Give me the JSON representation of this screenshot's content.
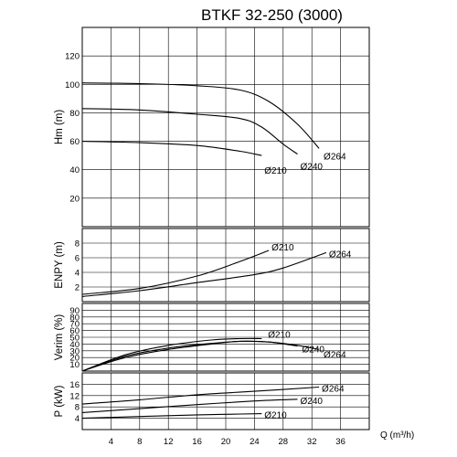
{
  "chart_data": {
    "type": "line",
    "title": "BTKF 32-250 (3000)",
    "xlabel": "Q (m³/h)",
    "xlim": [
      0,
      40
    ],
    "x_ticks": [
      4,
      8,
      12,
      16,
      20,
      24,
      28,
      32,
      36
    ],
    "grid": true,
    "panels": [
      {
        "id": "head",
        "ylabel": "Hm (m)",
        "ylim": [
          0,
          140
        ],
        "y_ticks": [
          20,
          40,
          60,
          80,
          100,
          120
        ],
        "series": [
          {
            "name": "Ø264",
            "points": [
              [
                0,
                101
              ],
              [
                8,
                100.5
              ],
              [
                16,
                99
              ],
              [
                22,
                96
              ],
              [
                26,
                88
              ],
              [
                30,
                72
              ],
              [
                33,
                55
              ]
            ]
          },
          {
            "name": "Ø240",
            "points": [
              [
                0,
                83
              ],
              [
                8,
                82
              ],
              [
                16,
                79
              ],
              [
                22,
                76
              ],
              [
                25,
                70
              ],
              [
                28,
                58
              ],
              [
                30,
                51
              ]
            ]
          },
          {
            "name": "Ø210",
            "points": [
              [
                0,
                60
              ],
              [
                8,
                59
              ],
              [
                16,
                57
              ],
              [
                22,
                53
              ],
              [
                25,
                50
              ]
            ]
          }
        ]
      },
      {
        "id": "npsh",
        "ylabel": "ENPY (m)",
        "ylim": [
          0,
          10
        ],
        "y_ticks": [
          2,
          4,
          6,
          8
        ],
        "series": [
          {
            "name": "Ø210",
            "points": [
              [
                0,
                1
              ],
              [
                8,
                1.8
              ],
              [
                16,
                3.5
              ],
              [
                22,
                5.5
              ],
              [
                26,
                7
              ]
            ]
          },
          {
            "name": "Ø264",
            "points": [
              [
                0,
                0.7
              ],
              [
                8,
                1.5
              ],
              [
                16,
                2.6
              ],
              [
                24,
                3.7
              ],
              [
                28,
                4.6
              ],
              [
                34,
                6.7
              ]
            ]
          }
        ]
      },
      {
        "id": "efficiency",
        "ylabel": "Verim (%)",
        "ylim": [
          0,
          100
        ],
        "y_ticks": [
          10,
          20,
          30,
          40,
          50,
          60,
          70,
          80,
          90
        ],
        "series": [
          {
            "name": "Ø210",
            "points": [
              [
                0,
                0
              ],
              [
                6,
                24
              ],
              [
                12,
                38
              ],
              [
                18,
                46
              ],
              [
                22,
                48
              ],
              [
                25,
                48
              ]
            ]
          },
          {
            "name": "Ø240",
            "points": [
              [
                0,
                0
              ],
              [
                6,
                22
              ],
              [
                12,
                34
              ],
              [
                18,
                41
              ],
              [
                22,
                44
              ],
              [
                26,
                43
              ],
              [
                30,
                37
              ]
            ]
          },
          {
            "name": "Ø264",
            "points": [
              [
                0,
                0
              ],
              [
                6,
                20
              ],
              [
                12,
                32
              ],
              [
                18,
                40
              ],
              [
                22,
                44
              ],
              [
                26,
                43
              ],
              [
                30,
                38
              ],
              [
                33,
                32
              ]
            ]
          }
        ]
      },
      {
        "id": "power",
        "ylabel": "P (kW)",
        "ylim": [
          0,
          20
        ],
        "y_ticks": [
          4,
          8,
          12,
          16
        ],
        "series": [
          {
            "name": "Ø264",
            "points": [
              [
                0,
                9
              ],
              [
                8,
                10.5
              ],
              [
                16,
                12.3
              ],
              [
                24,
                13.5
              ],
              [
                33,
                15
              ]
            ]
          },
          {
            "name": "Ø240",
            "points": [
              [
                0,
                6
              ],
              [
                8,
                7.4
              ],
              [
                16,
                8.8
              ],
              [
                24,
                10.1
              ],
              [
                30,
                10.7
              ]
            ]
          },
          {
            "name": "Ø210",
            "points": [
              [
                0,
                4
              ],
              [
                8,
                4.6
              ],
              [
                16,
                5.2
              ],
              [
                20,
                5.4
              ],
              [
                25,
                5.6
              ]
            ]
          }
        ]
      }
    ]
  }
}
